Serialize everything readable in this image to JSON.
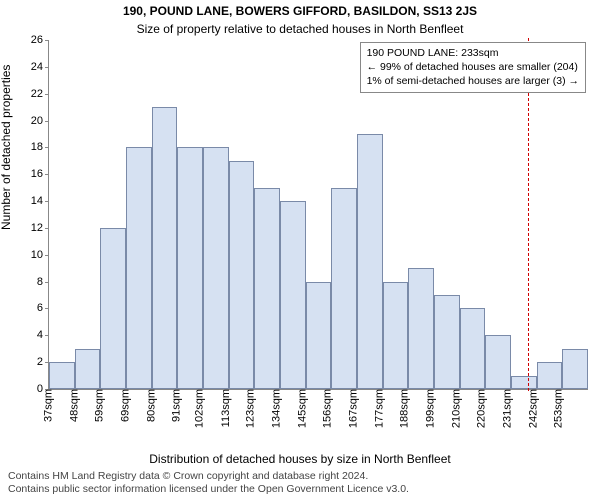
{
  "chart": {
    "type": "histogram",
    "title_main": "190, POUND LANE, BOWERS GIFFORD, BASILDON, SS13 2JS",
    "title_sub": "Size of property relative to detached houses in North Benfleet",
    "ylabel": "Number of detached properties",
    "xlabel": "Distribution of detached houses by size in North Benfleet",
    "title_fontsize": 12,
    "label_fontsize": 12,
    "tick_fontsize": 11,
    "background_color": "#ffffff",
    "bar_fill": "#d6e1f2",
    "bar_border": "#7a8aa8",
    "axis_color": "#888888",
    "marker_color": "#d00000",
    "ylim": [
      0,
      26
    ],
    "ytick_step": 2,
    "categories": [
      "37sqm",
      "48sqm",
      "59sqm",
      "69sqm",
      "80sqm",
      "91sqm",
      "102sqm",
      "113sqm",
      "123sqm",
      "134sqm",
      "145sqm",
      "156sqm",
      "167sqm",
      "177sqm",
      "188sqm",
      "199sqm",
      "210sqm",
      "220sqm",
      "231sqm",
      "242sqm",
      "253sqm"
    ],
    "values": [
      2,
      3,
      12,
      18,
      21,
      18,
      18,
      17,
      15,
      14,
      8,
      15,
      19,
      8,
      9,
      7,
      6,
      4,
      1,
      2,
      3
    ],
    "bar_width": 1.0,
    "marker_position_sqm": 233,
    "info_box": {
      "line1": "190 POUND LANE: 233sqm",
      "line2": "← 99% of detached houses are smaller (204)",
      "line3": "1% of semi-detached houses are larger (3) →"
    }
  },
  "footer": {
    "line1": "Contains HM Land Registry data © Crown copyright and database right 2024.",
    "line2": "Contains public sector information licensed under the Open Government Licence v3.0."
  }
}
